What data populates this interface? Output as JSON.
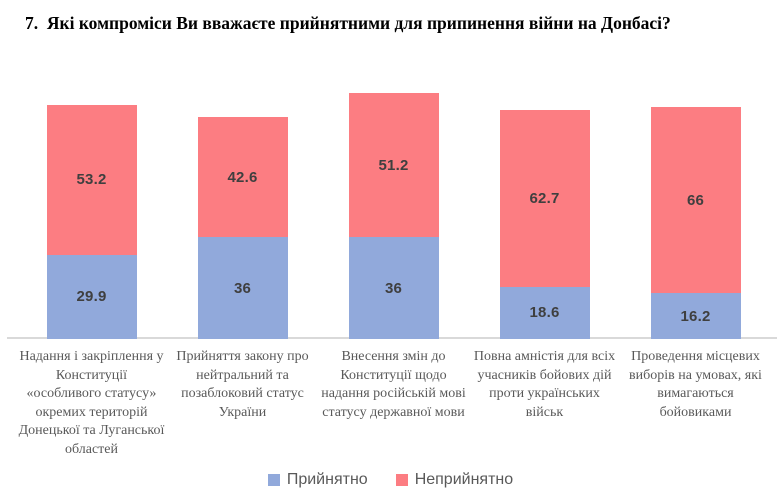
{
  "chart_data": {
    "type": "bar",
    "stacked": true,
    "title": "7.  Які компроміси Ви вважаєте прийнятними для припинення війни на Донбасі?",
    "categories": [
      "Надання і закріплення у Конституції «особливого статусу» окремих територій Донецької та Луганської областей",
      "Прийняття закону про нейтральний та позаблоковий статус України",
      "Внесення змін до Конституції щодо надання російській мові статусу державної мови",
      "Повна амністія для всіх учасників бойових дій проти українських військ",
      "Проведення місцевих виборів на умовах, які вимагаються бойовиками"
    ],
    "series": [
      {
        "name": "Прийнятно",
        "color": "#91A9DB",
        "values": [
          29.9,
          36,
          36,
          18.6,
          16.2
        ]
      },
      {
        "name": "Неприйнятно",
        "color": "#FC7D82",
        "values": [
          53.2,
          42.6,
          51.2,
          62.7,
          66
        ]
      }
    ],
    "xlabel": "",
    "ylabel": "",
    "ylim": [
      0,
      92
    ],
    "y_axis_visible": false,
    "grid": false,
    "legend_position": "bottom",
    "value_labels_shown": true,
    "value_label_color": "#3F3F3F",
    "category_label_color": "#595959",
    "legend_text_color": "#595959",
    "axis_line_color": "#D9D9D9",
    "title_color": "#000000"
  }
}
